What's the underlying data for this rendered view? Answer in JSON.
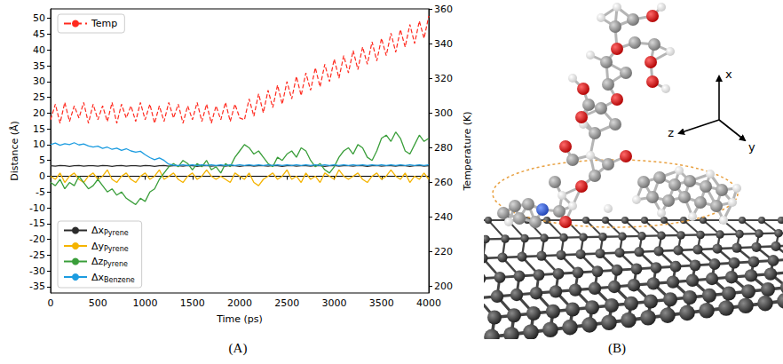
{
  "chart_data": {
    "type": "line",
    "panel_label": "(A)",
    "xlabel": "Time (ps)",
    "ylabel": "Distance (Å)",
    "y2label": "Temperature (K)",
    "x": [
      0,
      50,
      100,
      150,
      200,
      250,
      300,
      350,
      400,
      450,
      500,
      550,
      600,
      650,
      700,
      750,
      800,
      850,
      900,
      950,
      1000,
      1050,
      1100,
      1150,
      1200,
      1250,
      1300,
      1350,
      1400,
      1450,
      1500,
      1550,
      1600,
      1650,
      1700,
      1750,
      1800,
      1850,
      1900,
      1950,
      2000,
      2050,
      2100,
      2150,
      2200,
      2250,
      2300,
      2350,
      2400,
      2450,
      2500,
      2550,
      2600,
      2650,
      2700,
      2750,
      2800,
      2850,
      2900,
      2950,
      3000,
      3050,
      3100,
      3150,
      3200,
      3250,
      3300,
      3350,
      3400,
      3450,
      3500,
      3550,
      3600,
      3650,
      3700,
      3750,
      3800,
      3850,
      3900,
      3950,
      4000
    ],
    "xlim": [
      0,
      4000
    ],
    "xticks": [
      0,
      500,
      1000,
      1500,
      2000,
      2500,
      3000,
      3500,
      4000
    ],
    "ylim": [
      -37,
      53
    ],
    "yticks": [
      -35,
      -30,
      -25,
      -20,
      -15,
      -10,
      -5,
      0,
      5,
      10,
      15,
      20,
      25,
      30,
      35,
      40,
      45,
      50
    ],
    "y2lim": [
      196,
      360
    ],
    "y2ticks": [
      200,
      220,
      240,
      260,
      280,
      300,
      320,
      340,
      360
    ],
    "grid": false,
    "legend": "lower left",
    "series": [
      {
        "name": "Temp",
        "color": "#ff2a1f",
        "axis": "y2",
        "line_style": "dashed",
        "legend": "upper left",
        "values": [
          296,
          305,
          294,
          306,
          295,
          304,
          297,
          306,
          294,
          305,
          296,
          304,
          295,
          306,
          294,
          305,
          297,
          304,
          295,
          306,
          296,
          305,
          294,
          304,
          295,
          306,
          297,
          305,
          294,
          304,
          296,
          306,
          295,
          305,
          294,
          304,
          296,
          306,
          295,
          305,
          297,
          296,
          308,
          298,
          311,
          300,
          313,
          303,
          316,
          305,
          318,
          308,
          321,
          310,
          323,
          313,
          326,
          315,
          328,
          318,
          331,
          320,
          333,
          323,
          336,
          325,
          338,
          328,
          341,
          330,
          343,
          333,
          346,
          335,
          348,
          338,
          351,
          340,
          353,
          343,
          356
        ]
      },
      {
        "name": "ΔxPyrene",
        "color": "#2b2b2b",
        "values": [
          3.3,
          3.2,
          3.4,
          3.3,
          3.1,
          3.3,
          3.4,
          3.2,
          3.3,
          3.3,
          3.2,
          3.4,
          3.3,
          3.1,
          3.3,
          3.4,
          3.2,
          3.3,
          3.3,
          3.2,
          3.4,
          3.3,
          3.1,
          3.3,
          3.4,
          3.2,
          3.3,
          3.3,
          3.2,
          3.4,
          3.3,
          3.1,
          3.3,
          3.4,
          3.2,
          3.3,
          3.3,
          3.2,
          3.4,
          3.3,
          3.1,
          3.3,
          3.4,
          3.2,
          3.3,
          3.3,
          3.2,
          3.4,
          3.3,
          3.1,
          3.3,
          3.4,
          3.2,
          3.3,
          3.3,
          3.2,
          3.4,
          3.3,
          3.1,
          3.3,
          3.4,
          3.2,
          3.3,
          3.3,
          3.2,
          3.4,
          3.3,
          3.1,
          3.3,
          3.4,
          3.2,
          3.3,
          3.3,
          3.2,
          3.4,
          3.3,
          3.1,
          3.3,
          3.4,
          3.2,
          3.3
        ]
      },
      {
        "name": "ΔyPyrene",
        "color": "#f5b400",
        "values": [
          0,
          -1,
          1,
          -2,
          0,
          1,
          -1,
          -2,
          0,
          1,
          -1,
          0,
          2,
          -1,
          -2,
          0,
          1,
          -1,
          -2,
          0,
          1,
          -1,
          0,
          2,
          -1,
          0,
          1,
          -1,
          -2,
          0,
          1,
          -1,
          0,
          2,
          0,
          -1,
          0,
          -1,
          -2,
          1,
          0,
          -1,
          1,
          -2,
          -3,
          -1,
          0,
          1,
          -1,
          0,
          2,
          -1,
          0,
          -2,
          1,
          -1,
          0,
          -2,
          1,
          0,
          -1,
          2,
          0,
          -1,
          0,
          1,
          -1,
          -2,
          0,
          1,
          -1,
          0,
          2,
          0,
          -1,
          1,
          -2,
          0,
          -1,
          1,
          -1
        ]
      },
      {
        "name": "ΔzPyrene",
        "color": "#3a9e3a",
        "values": [
          -2,
          -3,
          -1,
          -4,
          -2,
          -3,
          0,
          -2,
          -4,
          -3,
          -1,
          -3,
          -5,
          -4,
          -6,
          -5,
          -7,
          -8,
          -9,
          -7,
          -8,
          -5,
          -4,
          -1,
          1,
          3,
          4,
          3,
          5,
          4,
          2,
          4,
          3,
          5,
          2,
          3,
          1,
          4,
          3,
          6,
          8,
          10,
          9,
          7,
          8,
          6,
          4,
          3,
          6,
          5,
          7,
          8,
          6,
          9,
          8,
          5,
          3,
          4,
          2,
          1,
          3,
          6,
          8,
          9,
          7,
          10,
          9,
          6,
          5,
          8,
          12,
          13,
          11,
          14,
          12,
          8,
          7,
          10,
          13,
          11,
          12
        ]
      },
      {
        "name": "ΔxBenzene",
        "color": "#1c9ce0",
        "values": [
          10,
          10.5,
          9.8,
          10.3,
          10,
          10.6,
          9.9,
          10.2,
          9.6,
          9.2,
          9.5,
          8.8,
          9.2,
          8.5,
          8.9,
          8.2,
          8.7,
          8,
          7.6,
          7.9,
          6.8,
          5.9,
          5.2,
          5.8,
          5,
          3.8,
          3.5,
          3.4,
          3.6,
          3.4,
          3.6,
          3.4,
          3.6,
          3.4,
          3.6,
          3.4,
          3.6,
          3.4,
          3.6,
          3.4,
          3.6,
          3.4,
          3.6,
          3.4,
          3.6,
          3.4,
          3.6,
          3.4,
          3.6,
          3.4,
          3.6,
          3.4,
          3.6,
          3.4,
          3.6,
          3.4,
          3.6,
          3.4,
          3.6,
          3.4,
          3.6,
          3.4,
          3.6,
          3.4,
          3.6,
          3.4,
          3.6,
          3.4,
          3.6,
          3.4,
          3.6,
          3.4,
          3.6,
          3.4,
          3.6,
          3.4,
          3.6,
          3.4,
          3.6,
          3.4,
          3.6
        ]
      }
    ]
  },
  "diagram": {
    "panel_label": "(B)",
    "axes": [
      "x",
      "y",
      "z"
    ]
  }
}
